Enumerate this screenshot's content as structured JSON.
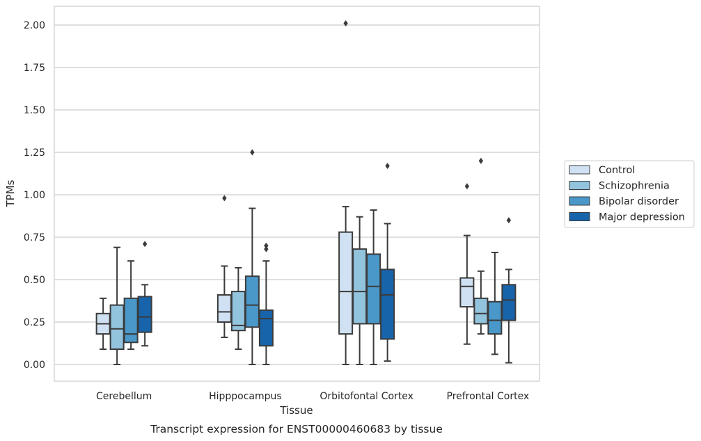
{
  "chart_data": {
    "type": "box",
    "caption": "Transcript expression for ENST00000460683 by tissue",
    "xlabel": "Tissue",
    "ylabel": "TPMs",
    "ylim": [
      -0.1,
      2.12
    ],
    "yticks": [
      "0.00",
      "0.25",
      "0.50",
      "0.75",
      "1.00",
      "1.25",
      "1.50",
      "1.75",
      "2.00"
    ],
    "grid": "horizontal",
    "legend_position": "right",
    "categories": [
      "Cerebellum",
      "Hipppocampus",
      "Orbitofontal Cortex",
      "Prefrontal Cortex"
    ],
    "series": [
      {
        "name": "Control",
        "color": "#cfe1f2",
        "boxes": [
          {
            "whislo": 0.09,
            "q1": 0.18,
            "med": 0.24,
            "q3": 0.3,
            "whishi": 0.39,
            "fliers": []
          },
          {
            "whislo": 0.16,
            "q1": 0.25,
            "med": 0.31,
            "q3": 0.41,
            "whishi": 0.58,
            "fliers": [
              0.98
            ]
          },
          {
            "whislo": 0.0,
            "q1": 0.18,
            "med": 0.43,
            "q3": 0.78,
            "whishi": 0.93,
            "fliers": [
              2.01
            ]
          },
          {
            "whislo": 0.12,
            "q1": 0.34,
            "med": 0.46,
            "q3": 0.51,
            "whishi": 0.76,
            "fliers": [
              1.05
            ]
          }
        ]
      },
      {
        "name": "Schizophrenia",
        "color": "#93c4de",
        "boxes": [
          {
            "whislo": 0.0,
            "q1": 0.09,
            "med": 0.21,
            "q3": 0.35,
            "whishi": 0.69,
            "fliers": []
          },
          {
            "whislo": 0.09,
            "q1": 0.2,
            "med": 0.23,
            "q3": 0.43,
            "whishi": 0.57,
            "fliers": []
          },
          {
            "whislo": 0.0,
            "q1": 0.24,
            "med": 0.43,
            "q3": 0.68,
            "whishi": 0.87,
            "fliers": []
          },
          {
            "whislo": 0.18,
            "q1": 0.24,
            "med": 0.3,
            "q3": 0.39,
            "whishi": 0.55,
            "fliers": [
              1.2
            ]
          }
        ]
      },
      {
        "name": "Bipolar disorder",
        "color": "#4a98c9",
        "boxes": [
          {
            "whislo": 0.09,
            "q1": 0.13,
            "med": 0.18,
            "q3": 0.39,
            "whishi": 0.61,
            "fliers": []
          },
          {
            "whislo": 0.0,
            "q1": 0.22,
            "med": 0.35,
            "q3": 0.52,
            "whishi": 0.92,
            "fliers": [
              1.25
            ]
          },
          {
            "whislo": 0.0,
            "q1": 0.24,
            "med": 0.46,
            "q3": 0.65,
            "whishi": 0.91,
            "fliers": []
          },
          {
            "whislo": 0.06,
            "q1": 0.18,
            "med": 0.26,
            "q3": 0.37,
            "whishi": 0.66,
            "fliers": []
          }
        ]
      },
      {
        "name": "Major depression",
        "color": "#1764ab",
        "boxes": [
          {
            "whislo": 0.11,
            "q1": 0.19,
            "med": 0.28,
            "q3": 0.4,
            "whishi": 0.47,
            "fliers": [
              0.71
            ]
          },
          {
            "whislo": 0.0,
            "q1": 0.11,
            "med": 0.27,
            "q3": 0.32,
            "whishi": 0.61,
            "fliers": [
              0.68,
              0.7
            ]
          },
          {
            "whislo": 0.02,
            "q1": 0.15,
            "med": 0.41,
            "q3": 0.56,
            "whishi": 0.83,
            "fliers": [
              1.17
            ]
          },
          {
            "whislo": 0.01,
            "q1": 0.26,
            "med": 0.38,
            "q3": 0.47,
            "whishi": 0.56,
            "fliers": [
              0.85
            ]
          }
        ]
      }
    ]
  }
}
